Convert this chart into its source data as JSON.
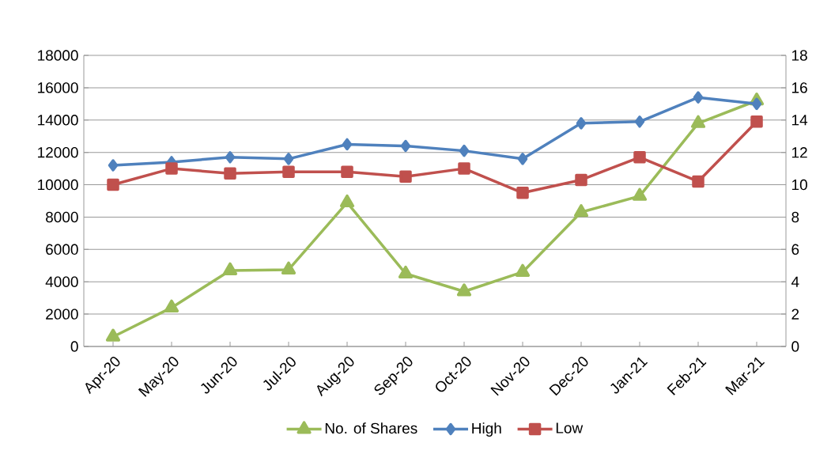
{
  "chart_data": {
    "type": "line",
    "categories": [
      "Apr-20",
      "May-20",
      "Jun-20",
      "Jul-20",
      "Aug-20",
      "Sep-20",
      "Oct-20",
      "Nov-20",
      "Dec-20",
      "Jan-21",
      "Feb-21",
      "Mar-21"
    ],
    "series": [
      {
        "name": "No. of Shares",
        "color": "#9bbb59",
        "marker": "triangle",
        "values": [
          600,
          2400,
          4700,
          4750,
          8900,
          4500,
          3400,
          4600,
          8300,
          9300,
          13800,
          15200
        ]
      },
      {
        "name": "High",
        "color": "#4f81bd",
        "marker": "diamond",
        "axis": "y2",
        "values": [
          11.2,
          11.4,
          11.7,
          11.6,
          12.5,
          12.4,
          12.1,
          11.6,
          13.8,
          13.9,
          15.4,
          15.0
        ]
      },
      {
        "name": "Low",
        "color": "#c0504d",
        "marker": "square",
        "axis": "y2",
        "values": [
          10.0,
          11.0,
          10.7,
          10.8,
          10.8,
          10.5,
          11.0,
          9.5,
          10.3,
          11.7,
          10.2,
          13.9
        ]
      }
    ],
    "ylim": [
      0,
      18000
    ],
    "yticks": [
      0,
      2000,
      4000,
      6000,
      8000,
      10000,
      12000,
      14000,
      16000,
      18000
    ],
    "y2lim": [
      0,
      18
    ],
    "y2ticks": [
      0,
      2,
      4,
      6,
      8,
      10,
      12,
      14,
      16,
      18
    ],
    "grid": "y",
    "legend": "bottom"
  }
}
